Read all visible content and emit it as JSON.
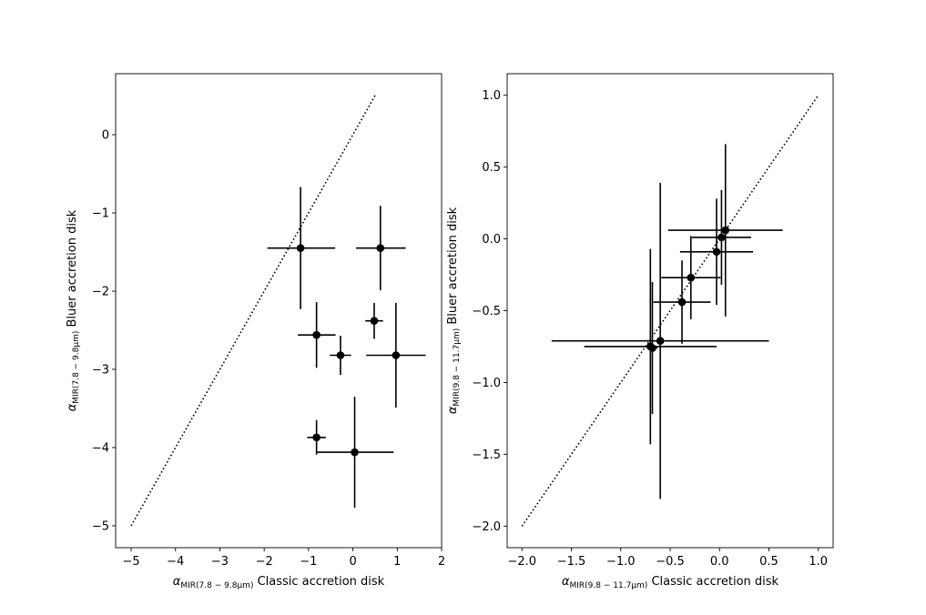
{
  "chart_data": [
    {
      "type": "scatter",
      "xlabel": {
        "symbol": "α",
        "subscript": "MIR(7.8 − 9.8μm)",
        "text": " Classic accretion disk"
      },
      "ylabel": {
        "symbol": "α",
        "subscript": "MIR(7.8 − 9.8μm)",
        "text": " Bluer accretion disk"
      },
      "xlim": [
        -5.35,
        2.0
      ],
      "ylim": [
        -5.28,
        0.78
      ],
      "xticks": [
        -5,
        -4,
        -3,
        -2,
        -1,
        0,
        1,
        2
      ],
      "xtick_labels": [
        "−5",
        "−4",
        "−3",
        "−2",
        "−1",
        "0",
        "1",
        "2"
      ],
      "yticks": [
        -5,
        -4,
        -3,
        -2,
        -1,
        0
      ],
      "ytick_labels": [
        "−5",
        "−4",
        "−3",
        "−2",
        "−1",
        "0"
      ],
      "reference_line": {
        "style": "dotted",
        "x": [
          -5,
          0.5
        ],
        "y": [
          -5,
          0.5
        ]
      },
      "points": [
        {
          "x": -1.18,
          "y": -1.45,
          "xerr": [
            0.75,
            0.78
          ],
          "yerr": [
            0.78,
            0.78
          ]
        },
        {
          "x": 0.62,
          "y": -1.45,
          "xerr": [
            0.55,
            0.57
          ],
          "yerr": [
            0.54,
            0.54
          ]
        },
        {
          "x": 0.48,
          "y": -2.38,
          "xerr": [
            0.2,
            0.2
          ],
          "yerr": [
            0.23,
            0.23
          ]
        },
        {
          "x": -0.82,
          "y": -2.56,
          "xerr": [
            0.42,
            0.43
          ],
          "yerr": [
            0.42,
            0.42
          ]
        },
        {
          "x": -0.28,
          "y": -2.82,
          "xerr": [
            0.24,
            0.24
          ],
          "yerr": [
            0.25,
            0.25
          ]
        },
        {
          "x": 0.97,
          "y": -2.82,
          "xerr": [
            0.67,
            0.67
          ],
          "yerr": [
            0.67,
            0.67
          ]
        },
        {
          "x": -0.82,
          "y": -3.87,
          "xerr": [
            0.21,
            0.21
          ],
          "yerr": [
            0.22,
            0.22
          ]
        },
        {
          "x": 0.04,
          "y": -4.06,
          "xerr": [
            0.87,
            0.88
          ],
          "yerr": [
            0.71,
            0.71
          ]
        }
      ]
    },
    {
      "type": "scatter",
      "xlabel": {
        "symbol": "α",
        "subscript": "MIR(9.8 − 11.7μm)",
        "text": " Classic accretion disk"
      },
      "ylabel": {
        "symbol": "α",
        "subscript": "MIR(9.8 − 11.7μm)",
        "text": " Bluer accretion disk"
      },
      "xlim": [
        -2.15,
        1.15
      ],
      "ylim": [
        -2.15,
        1.15
      ],
      "xticks": [
        -2.0,
        -1.5,
        -1.0,
        -0.5,
        0.0,
        0.5,
        1.0
      ],
      "xtick_labels": [
        "−2.0",
        "−1.5",
        "−1.0",
        "−0.5",
        "0.0",
        "0.5",
        "1.0"
      ],
      "yticks": [
        -2.0,
        -1.5,
        -1.0,
        -0.5,
        0.0,
        0.5,
        1.0
      ],
      "ytick_labels": [
        "−2.0",
        "−1.5",
        "−1.0",
        "−0.5",
        "0.0",
        "0.5",
        "1.0"
      ],
      "reference_line": {
        "style": "dotted",
        "x": [
          -2,
          1
        ],
        "y": [
          -2,
          1
        ]
      },
      "points": [
        {
          "x": 0.06,
          "y": 0.06,
          "xerr": [
            0.58,
            0.58
          ],
          "yerr": [
            0.6,
            0.6
          ]
        },
        {
          "x": 0.02,
          "y": 0.01,
          "xerr": [
            0.3,
            0.3
          ],
          "yerr": [
            0.33,
            0.33
          ]
        },
        {
          "x": -0.03,
          "y": -0.09,
          "xerr": [
            0.37,
            0.37
          ],
          "yerr": [
            0.37,
            0.37
          ]
        },
        {
          "x": -0.29,
          "y": -0.27,
          "xerr": [
            0.3,
            0.3
          ],
          "yerr": [
            0.29,
            0.29
          ]
        },
        {
          "x": -0.38,
          "y": -0.44,
          "xerr": [
            0.29,
            0.29
          ],
          "yerr": [
            0.29,
            0.29
          ]
        },
        {
          "x": -0.6,
          "y": -0.71,
          "xerr": [
            1.1,
            1.1
          ],
          "yerr": [
            1.1,
            1.1
          ]
        },
        {
          "x": -0.7,
          "y": -0.75,
          "xerr": [
            0.67,
            0.67
          ],
          "yerr": [
            0.68,
            0.68
          ]
        },
        {
          "x": -0.68,
          "y": -0.76,
          "xerr": [
            0.05,
            0.05
          ],
          "yerr": [
            0.46,
            0.46
          ]
        }
      ]
    }
  ]
}
